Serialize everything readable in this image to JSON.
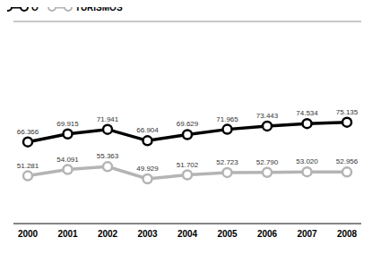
{
  "chart_data": {
    "type": "line",
    "categories": [
      "2000",
      "2001",
      "2002",
      "2003",
      "2004",
      "2005",
      "2006",
      "2007",
      "2008"
    ],
    "series": [
      {
        "name": "O",
        "color": "#000000",
        "marker": "circle",
        "values": [
          66366,
          69915,
          71941,
          66904,
          69629,
          71965,
          73443,
          74534,
          75135
        ],
        "value_labels": [
          "66.366",
          "69.915",
          "71.941",
          "66.904",
          "69.629",
          "71.965",
          "73.443",
          "74.534",
          "75.135"
        ]
      },
      {
        "name": "TURISMOS",
        "color": "#b4b4b4",
        "marker": "circle",
        "values": [
          51281,
          54091,
          55363,
          49929,
          51702,
          52723,
          52790,
          53020,
          52956
        ],
        "value_labels": [
          "51.281",
          "54.091",
          "55.363",
          "49.929",
          "51.702",
          "52.723",
          "52.790",
          "53.020",
          "52.956"
        ]
      }
    ],
    "ylim": [
      30000,
      120000
    ],
    "yticks": [
      30000,
      45000,
      60000,
      75000,
      90000,
      105000,
      120000
    ],
    "grid": true,
    "data_labels": true,
    "tick_labels": "x",
    "legend": "top-left"
  }
}
